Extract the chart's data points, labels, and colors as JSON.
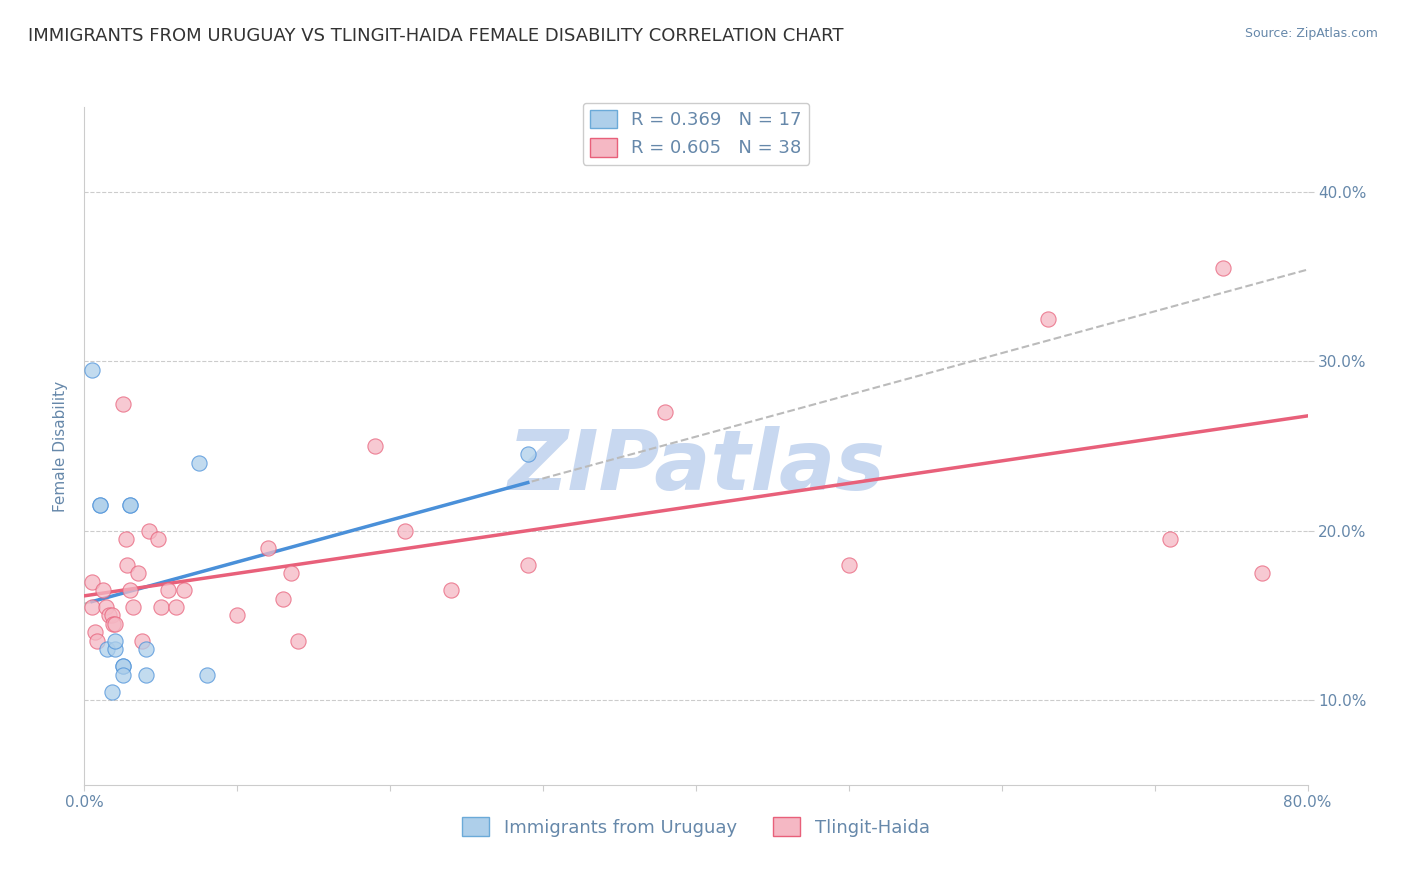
{
  "title": "IMMIGRANTS FROM URUGUAY VS TLINGIT-HAIDA FEMALE DISABILITY CORRELATION CHART",
  "source_text": "Source: ZipAtlas.com",
  "ylabel": "Female Disability",
  "xlim": [
    0.0,
    0.8
  ],
  "ylim": [
    0.05,
    0.45
  ],
  "x_ticks": [
    0.0,
    0.1,
    0.2,
    0.3,
    0.4,
    0.5,
    0.6,
    0.7,
    0.8
  ],
  "x_tick_labels": [
    "0.0%",
    "",
    "",
    "",
    "",
    "",
    "",
    "",
    "80.0%"
  ],
  "y_ticks": [
    0.1,
    0.2,
    0.3,
    0.4
  ],
  "y_tick_labels": [
    "10.0%",
    "20.0%",
    "30.0%",
    "40.0%"
  ],
  "legend_entries_top": [
    {
      "label": "R = 0.369   N = 17",
      "facecolor": "#AECFEA",
      "edgecolor": "#6BAAD8"
    },
    {
      "label": "R = 0.605   N = 38",
      "facecolor": "#F5B8C4",
      "edgecolor": "#E8607A"
    }
  ],
  "legend_entries_bottom": [
    {
      "label": "Immigrants from Uruguay",
      "facecolor": "#AECFEA",
      "edgecolor": "#6BAAD8"
    },
    {
      "label": "Tlingit-Haida",
      "facecolor": "#F5B8C4",
      "edgecolor": "#E8607A"
    }
  ],
  "watermark": "ZIPatlas",
  "watermark_color": "#C8D8F0",
  "blue_scatter_x": [
    0.005,
    0.01,
    0.01,
    0.015,
    0.02,
    0.02,
    0.025,
    0.025,
    0.025,
    0.03,
    0.03,
    0.04,
    0.04,
    0.075,
    0.08,
    0.29,
    0.018
  ],
  "blue_scatter_y": [
    0.295,
    0.215,
    0.215,
    0.13,
    0.13,
    0.135,
    0.12,
    0.12,
    0.115,
    0.215,
    0.215,
    0.13,
    0.115,
    0.24,
    0.115,
    0.245,
    0.105
  ],
  "pink_scatter_x": [
    0.005,
    0.005,
    0.007,
    0.008,
    0.012,
    0.014,
    0.016,
    0.018,
    0.019,
    0.02,
    0.025,
    0.027,
    0.028,
    0.03,
    0.032,
    0.035,
    0.038,
    0.042,
    0.048,
    0.05,
    0.055,
    0.06,
    0.065,
    0.1,
    0.12,
    0.13,
    0.135,
    0.14,
    0.19,
    0.21,
    0.24,
    0.29,
    0.38,
    0.5,
    0.63,
    0.71,
    0.745,
    0.77
  ],
  "pink_scatter_y": [
    0.17,
    0.155,
    0.14,
    0.135,
    0.165,
    0.155,
    0.15,
    0.15,
    0.145,
    0.145,
    0.275,
    0.195,
    0.18,
    0.165,
    0.155,
    0.175,
    0.135,
    0.2,
    0.195,
    0.155,
    0.165,
    0.155,
    0.165,
    0.15,
    0.19,
    0.16,
    0.175,
    0.135,
    0.25,
    0.2,
    0.165,
    0.18,
    0.27,
    0.18,
    0.325,
    0.195,
    0.355,
    0.175
  ],
  "blue_line_color": "#4A90D9",
  "pink_line_color": "#E8607A",
  "gray_dashed_color": "#BBBBBB",
  "blue_scatter_facecolor": "#AECFEA",
  "pink_scatter_facecolor": "#F5B8C4",
  "scatter_size": 120,
  "scatter_alpha": 0.75,
  "background_color": "#FFFFFF",
  "grid_color": "#CCCCCC",
  "axis_color": "#6688AA",
  "title_color": "#333333",
  "title_fontsize": 13,
  "axis_label_fontsize": 11,
  "tick_fontsize": 11,
  "legend_fontsize": 13
}
